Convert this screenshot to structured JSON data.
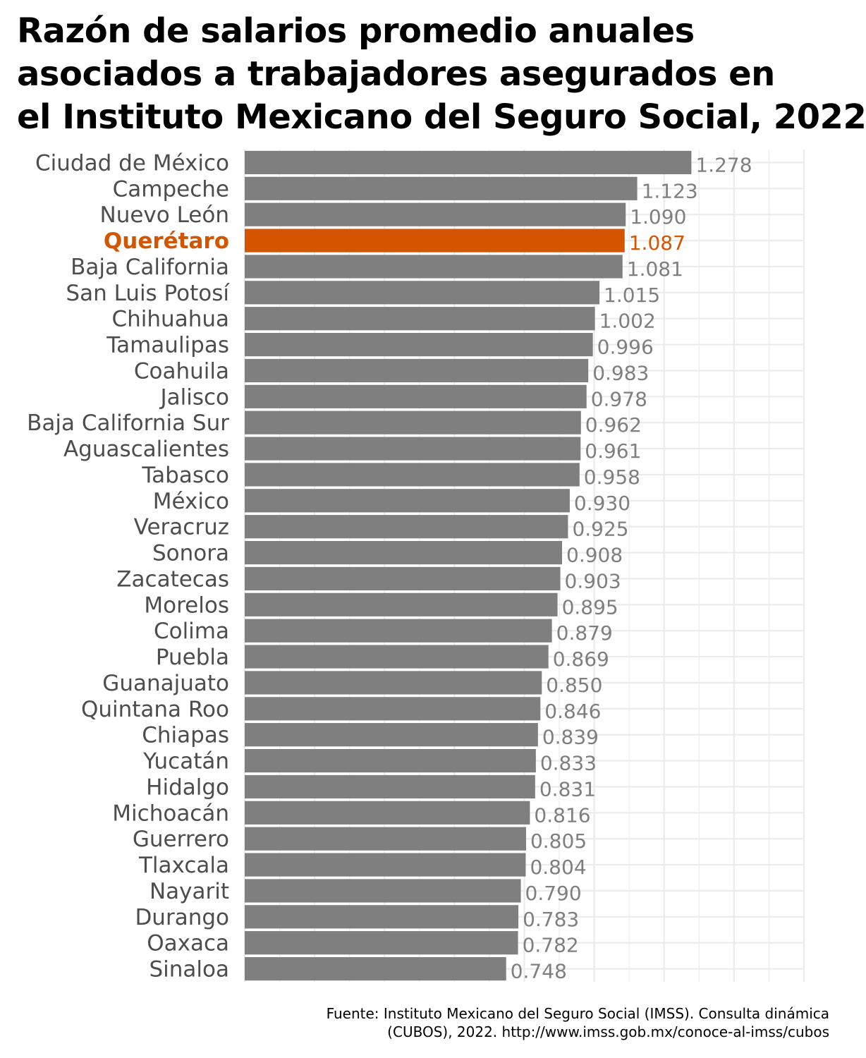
{
  "title_lines": [
    "Razón de salarios promedio anuales",
    "asociados a trabajadores asegurados en",
    "el Instituto Mexicano del Seguro Social, 2022"
  ],
  "caption_lines": [
    "Fuente: Instituto Mexicano del Seguro Social (IMSS). Consulta dinámica",
    "(CUBOS), 2022. http://www.imss.gob.mx/conoce-al-imss/cubos"
  ],
  "colors": {
    "bar": "#7f7f7f",
    "highlight": "#d45500",
    "grid": "#ebebeb"
  },
  "chart_data": {
    "type": "bar",
    "orientation": "horizontal",
    "highlight": "Querétaro",
    "categories": [
      "Ciudad de México",
      "Campeche",
      "Nuevo León",
      "Querétaro",
      "Baja California",
      "San Luis Potosí",
      "Chihuahua",
      "Tamaulipas",
      "Coahuila",
      "Jalisco",
      "Baja California Sur",
      "Aguascalientes",
      "Tabasco",
      "México",
      "Veracruz",
      "Sonora",
      "Zacatecas",
      "Morelos",
      "Colima",
      "Puebla",
      "Guanajuato",
      "Quintana Roo",
      "Chiapas",
      "Yucatán",
      "Hidalgo",
      "Michoacán",
      "Guerrero",
      "Tlaxcala",
      "Nayarit",
      "Durango",
      "Oaxaca",
      "Sinaloa"
    ],
    "values": [
      1.278,
      1.123,
      1.09,
      1.087,
      1.081,
      1.015,
      1.002,
      0.996,
      0.983,
      0.978,
      0.962,
      0.961,
      0.958,
      0.93,
      0.925,
      0.908,
      0.903,
      0.895,
      0.879,
      0.869,
      0.85,
      0.846,
      0.839,
      0.833,
      0.831,
      0.816,
      0.805,
      0.804,
      0.79,
      0.783,
      0.782,
      0.748
    ],
    "labels": [
      "1.278",
      "1.123",
      "1.090",
      "1.087",
      "1.081",
      "1.015",
      "1.002",
      "0.996",
      "0.983",
      "0.978",
      "0.962",
      "0.961",
      "0.958",
      "0.930",
      "0.925",
      "0.908",
      "0.903",
      "0.895",
      "0.879",
      "0.869",
      "0.850",
      "0.846",
      "0.839",
      "0.833",
      "0.831",
      "0.816",
      "0.805",
      "0.804",
      "0.790",
      "0.783",
      "0.782",
      "0.748"
    ],
    "xlim": [
      0,
      1.6
    ],
    "grid": true
  }
}
